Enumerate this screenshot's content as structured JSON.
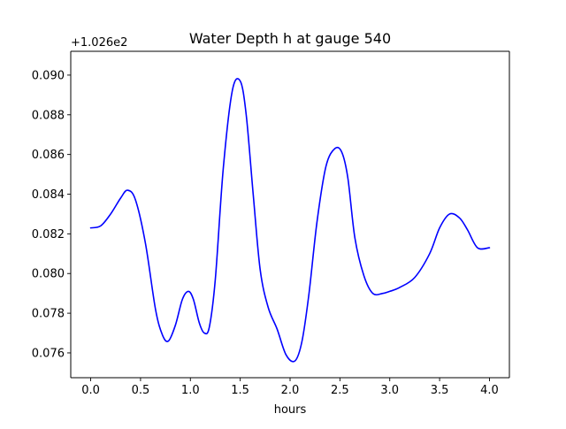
{
  "chart_data": {
    "type": "line",
    "title": "Water Depth h at gauge 540",
    "xlabel": "hours",
    "ylabel": "",
    "y_offset_text": "+1.026e2",
    "xlim": [
      -0.2,
      4.2
    ],
    "ylim": [
      0.07475,
      0.0912
    ],
    "x_ticks": [
      0.0,
      0.5,
      1.0,
      1.5,
      2.0,
      2.5,
      3.0,
      3.5,
      4.0
    ],
    "x_tick_labels": [
      "0.0",
      "0.5",
      "1.0",
      "1.5",
      "2.0",
      "2.5",
      "3.0",
      "3.5",
      "4.0"
    ],
    "y_ticks": [
      0.076,
      0.078,
      0.08,
      0.082,
      0.084,
      0.086,
      0.088,
      0.09
    ],
    "y_tick_labels": [
      "0.076",
      "0.078",
      "0.080",
      "0.082",
      "0.084",
      "0.086",
      "0.088",
      "0.090"
    ],
    "grid": false,
    "series": [
      {
        "color": "#0000ff",
        "x": [
          0.0,
          0.1,
          0.2,
          0.3,
          0.37,
          0.45,
          0.55,
          0.65,
          0.72,
          0.78,
          0.85,
          0.92,
          0.98,
          1.03,
          1.09,
          1.14,
          1.19,
          1.25,
          1.33,
          1.42,
          1.5,
          1.56,
          1.63,
          1.7,
          1.78,
          1.87,
          1.96,
          2.05,
          2.12,
          2.19,
          2.27,
          2.36,
          2.45,
          2.52,
          2.58,
          2.65,
          2.74,
          2.83,
          2.93,
          3.0,
          3.1,
          3.25,
          3.4,
          3.5,
          3.6,
          3.7,
          3.78,
          3.88,
          4.0
        ],
        "y": [
          0.0823,
          0.0824,
          0.083,
          0.0838,
          0.0842,
          0.0837,
          0.0815,
          0.0782,
          0.0769,
          0.0766,
          0.0774,
          0.0787,
          0.0791,
          0.0787,
          0.0775,
          0.077,
          0.0773,
          0.0797,
          0.0853,
          0.0892,
          0.0897,
          0.088,
          0.084,
          0.0802,
          0.0783,
          0.0772,
          0.0759,
          0.0756,
          0.0766,
          0.079,
          0.0826,
          0.0854,
          0.0863,
          0.0861,
          0.0848,
          0.0818,
          0.0799,
          0.079,
          0.079,
          0.0791,
          0.0793,
          0.0798,
          0.081,
          0.0823,
          0.083,
          0.0828,
          0.0822,
          0.0813,
          0.0813
        ]
      }
    ]
  }
}
